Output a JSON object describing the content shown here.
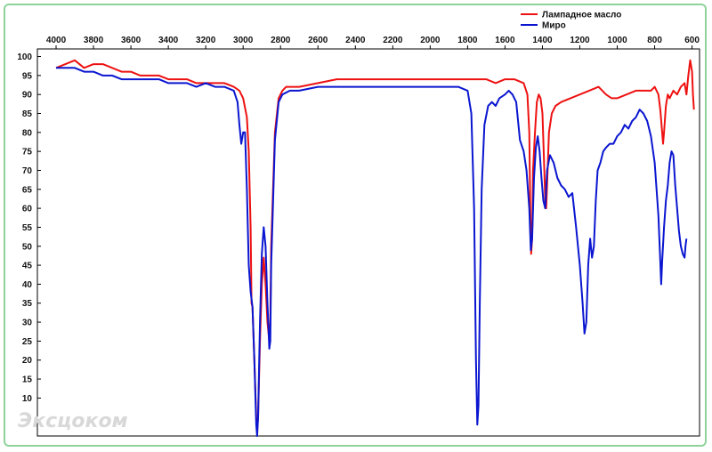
{
  "chart_data": {
    "type": "line",
    "xlabel": "",
    "ylabel": "",
    "xlim": [
      4100,
      560
    ],
    "ylim": [
      0,
      102
    ],
    "x_ticks": [
      4000,
      3800,
      3600,
      3400,
      3200,
      3000,
      2800,
      2600,
      2400,
      2200,
      2000,
      1800,
      1600,
      1400,
      1200,
      1000,
      800,
      600
    ],
    "y_ticks": [
      10,
      15,
      20,
      25,
      30,
      35,
      40,
      45,
      50,
      55,
      60,
      65,
      70,
      75,
      80,
      85,
      90,
      95,
      100
    ],
    "x_axis_position": "top",
    "grid": false,
    "legend_position": "top-right",
    "series": [
      {
        "name": "Лампадное масло",
        "color": "#ee1111",
        "points": [
          [
            4000,
            97
          ],
          [
            3950,
            98
          ],
          [
            3900,
            99
          ],
          [
            3850,
            97
          ],
          [
            3800,
            98
          ],
          [
            3750,
            98
          ],
          [
            3700,
            97
          ],
          [
            3650,
            96
          ],
          [
            3600,
            96
          ],
          [
            3550,
            95
          ],
          [
            3500,
            95
          ],
          [
            3450,
            95
          ],
          [
            3400,
            94
          ],
          [
            3350,
            94
          ],
          [
            3300,
            94
          ],
          [
            3250,
            93
          ],
          [
            3200,
            93
          ],
          [
            3150,
            93
          ],
          [
            3100,
            93
          ],
          [
            3050,
            92
          ],
          [
            3020,
            91
          ],
          [
            3000,
            89
          ],
          [
            2980,
            84
          ],
          [
            2970,
            75
          ],
          [
            2960,
            55
          ],
          [
            2955,
            35
          ],
          [
            2950,
            34
          ],
          [
            2940,
            20
          ],
          [
            2930,
            5
          ],
          [
            2925,
            1
          ],
          [
            2920,
            5
          ],
          [
            2910,
            25
          ],
          [
            2900,
            40
          ],
          [
            2890,
            47
          ],
          [
            2880,
            40
          ],
          [
            2870,
            30
          ],
          [
            2860,
            25
          ],
          [
            2855,
            30
          ],
          [
            2850,
            50
          ],
          [
            2830,
            80
          ],
          [
            2810,
            89
          ],
          [
            2790,
            91
          ],
          [
            2770,
            92
          ],
          [
            2700,
            92
          ],
          [
            2600,
            93
          ],
          [
            2500,
            94
          ],
          [
            2400,
            94
          ],
          [
            2300,
            94
          ],
          [
            2200,
            94
          ],
          [
            2100,
            94
          ],
          [
            2000,
            94
          ],
          [
            1900,
            94
          ],
          [
            1800,
            94
          ],
          [
            1750,
            94
          ],
          [
            1700,
            94
          ],
          [
            1650,
            93
          ],
          [
            1600,
            94
          ],
          [
            1550,
            94
          ],
          [
            1500,
            93
          ],
          [
            1480,
            90
          ],
          [
            1470,
            80
          ],
          [
            1465,
            60
          ],
          [
            1460,
            48
          ],
          [
            1455,
            52
          ],
          [
            1450,
            70
          ],
          [
            1440,
            80
          ],
          [
            1430,
            88
          ],
          [
            1420,
            90
          ],
          [
            1410,
            89
          ],
          [
            1400,
            85
          ],
          [
            1390,
            70
          ],
          [
            1385,
            62
          ],
          [
            1380,
            60
          ],
          [
            1375,
            66
          ],
          [
            1365,
            80
          ],
          [
            1350,
            85
          ],
          [
            1330,
            87
          ],
          [
            1300,
            88
          ],
          [
            1250,
            89
          ],
          [
            1200,
            90
          ],
          [
            1150,
            91
          ],
          [
            1100,
            92
          ],
          [
            1060,
            90
          ],
          [
            1030,
            89
          ],
          [
            1000,
            89
          ],
          [
            950,
            90
          ],
          [
            900,
            91
          ],
          [
            850,
            91
          ],
          [
            820,
            91
          ],
          [
            800,
            92
          ],
          [
            780,
            90
          ],
          [
            770,
            86
          ],
          [
            760,
            80
          ],
          [
            755,
            77
          ],
          [
            750,
            80
          ],
          [
            740,
            87
          ],
          [
            730,
            90
          ],
          [
            720,
            89
          ],
          [
            700,
            91
          ],
          [
            680,
            90
          ],
          [
            660,
            92
          ],
          [
            640,
            93
          ],
          [
            630,
            90
          ],
          [
            620,
            95
          ],
          [
            610,
            99
          ],
          [
            600,
            96
          ],
          [
            595,
            90
          ],
          [
            590,
            86
          ]
        ]
      },
      {
        "name": "Миро",
        "color": "#0a16d0",
        "points": [
          [
            4000,
            97
          ],
          [
            3950,
            97
          ],
          [
            3900,
            97
          ],
          [
            3850,
            96
          ],
          [
            3800,
            96
          ],
          [
            3750,
            95
          ],
          [
            3700,
            95
          ],
          [
            3650,
            94
          ],
          [
            3600,
            94
          ],
          [
            3550,
            94
          ],
          [
            3500,
            94
          ],
          [
            3450,
            94
          ],
          [
            3400,
            93
          ],
          [
            3350,
            93
          ],
          [
            3300,
            93
          ],
          [
            3250,
            92
          ],
          [
            3200,
            93
          ],
          [
            3150,
            92
          ],
          [
            3100,
            92
          ],
          [
            3050,
            91
          ],
          [
            3030,
            88
          ],
          [
            3020,
            82
          ],
          [
            3010,
            77
          ],
          [
            3000,
            80
          ],
          [
            2990,
            80
          ],
          [
            2980,
            65
          ],
          [
            2970,
            45
          ],
          [
            2960,
            38
          ],
          [
            2950,
            34
          ],
          [
            2940,
            20
          ],
          [
            2930,
            3
          ],
          [
            2925,
            0
          ],
          [
            2920,
            5
          ],
          [
            2910,
            30
          ],
          [
            2900,
            48
          ],
          [
            2890,
            55
          ],
          [
            2880,
            50
          ],
          [
            2870,
            35
          ],
          [
            2860,
            23
          ],
          [
            2855,
            25
          ],
          [
            2850,
            45
          ],
          [
            2830,
            78
          ],
          [
            2810,
            88
          ],
          [
            2790,
            90
          ],
          [
            2750,
            91
          ],
          [
            2700,
            91
          ],
          [
            2600,
            92
          ],
          [
            2500,
            92
          ],
          [
            2400,
            92
          ],
          [
            2300,
            92
          ],
          [
            2200,
            92
          ],
          [
            2100,
            92
          ],
          [
            2000,
            92
          ],
          [
            1900,
            92
          ],
          [
            1850,
            92
          ],
          [
            1800,
            91
          ],
          [
            1780,
            85
          ],
          [
            1765,
            60
          ],
          [
            1755,
            20
          ],
          [
            1748,
            3
          ],
          [
            1742,
            8
          ],
          [
            1735,
            35
          ],
          [
            1725,
            65
          ],
          [
            1710,
            82
          ],
          [
            1690,
            87
          ],
          [
            1670,
            88
          ],
          [
            1650,
            87
          ],
          [
            1630,
            89
          ],
          [
            1600,
            90
          ],
          [
            1580,
            91
          ],
          [
            1560,
            90
          ],
          [
            1540,
            88
          ],
          [
            1520,
            78
          ],
          [
            1500,
            75
          ],
          [
            1485,
            70
          ],
          [
            1470,
            60
          ],
          [
            1462,
            49
          ],
          [
            1455,
            52
          ],
          [
            1445,
            68
          ],
          [
            1435,
            76
          ],
          [
            1425,
            79
          ],
          [
            1415,
            75
          ],
          [
            1405,
            68
          ],
          [
            1395,
            62
          ],
          [
            1385,
            60
          ],
          [
            1375,
            70
          ],
          [
            1360,
            74
          ],
          [
            1340,
            72
          ],
          [
            1320,
            68
          ],
          [
            1300,
            66
          ],
          [
            1280,
            65
          ],
          [
            1260,
            63
          ],
          [
            1240,
            64
          ],
          [
            1220,
            55
          ],
          [
            1200,
            45
          ],
          [
            1185,
            35
          ],
          [
            1175,
            27
          ],
          [
            1165,
            30
          ],
          [
            1155,
            45
          ],
          [
            1145,
            52
          ],
          [
            1135,
            47
          ],
          [
            1125,
            50
          ],
          [
            1115,
            62
          ],
          [
            1105,
            70
          ],
          [
            1090,
            72
          ],
          [
            1075,
            75
          ],
          [
            1060,
            76
          ],
          [
            1040,
            77
          ],
          [
            1020,
            77
          ],
          [
            1000,
            79
          ],
          [
            980,
            80
          ],
          [
            960,
            82
          ],
          [
            940,
            81
          ],
          [
            920,
            83
          ],
          [
            900,
            84
          ],
          [
            880,
            86
          ],
          [
            860,
            85
          ],
          [
            840,
            83
          ],
          [
            820,
            79
          ],
          [
            800,
            72
          ],
          [
            780,
            58
          ],
          [
            770,
            46
          ],
          [
            765,
            40
          ],
          [
            760,
            46
          ],
          [
            750,
            55
          ],
          [
            740,
            62
          ],
          [
            730,
            66
          ],
          [
            720,
            72
          ],
          [
            710,
            75
          ],
          [
            700,
            74
          ],
          [
            690,
            66
          ],
          [
            680,
            60
          ],
          [
            670,
            54
          ],
          [
            660,
            50
          ],
          [
            650,
            48
          ],
          [
            640,
            47
          ],
          [
            635,
            50
          ],
          [
            630,
            52
          ]
        ]
      }
    ]
  },
  "watermark_text": "Эксцоком"
}
